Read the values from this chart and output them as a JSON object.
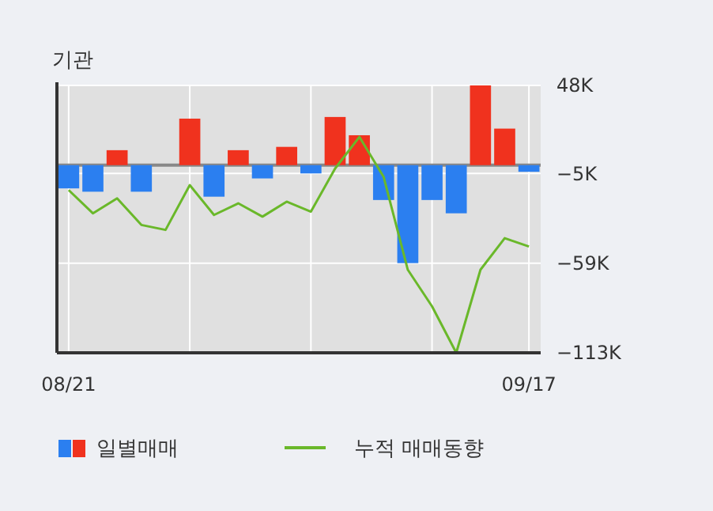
{
  "chart_data": {
    "type": "bar",
    "title": "기관",
    "categories": [
      "08/21",
      null,
      null,
      null,
      null,
      null,
      null,
      null,
      null,
      null,
      null,
      null,
      null,
      null,
      null,
      null,
      null,
      null,
      null,
      "09/17"
    ],
    "series": [
      {
        "name": "일별매매",
        "colors": [
          "#2b7ff0",
          "#2b7ff0",
          "#f0321e",
          "#2b7ff0",
          "#f0321e",
          "#f0321e",
          "#2b7ff0",
          "#f0321e",
          "#2b7ff0",
          "#f0321e",
          "#2b7ff0",
          "#f0321e",
          "#f0321e",
          "#2b7ff0",
          "#2b7ff0",
          "#2b7ff0",
          "#2b7ff0",
          "#f0321e",
          "#f0321e",
          "#2b7ff0"
        ],
        "values": [
          -14,
          -16,
          9,
          -16,
          0,
          28,
          -19,
          9,
          -8,
          11,
          -5,
          29,
          18,
          -21,
          -59,
          -21,
          -29,
          48,
          22,
          -4
        ]
      },
      {
        "name": "누적 매매동향",
        "type": "line",
        "color": "#6ab82a",
        "values": [
          -15,
          -29,
          -20,
          -36,
          -39,
          -12,
          -30,
          -23,
          -31,
          -22,
          -28,
          -2,
          17,
          -7,
          -63,
          -85,
          -113,
          -63,
          -44,
          -49
        ]
      }
    ],
    "ylim": [
      -113,
      48
    ],
    "yticks": [
      {
        "value": 48,
        "label": "48K"
      },
      {
        "value": -5,
        "label": "−5K"
      },
      {
        "value": -59,
        "label": "−59K"
      },
      {
        "value": -113,
        "label": "−113K"
      }
    ],
    "grid": true,
    "legend": "bottom"
  }
}
